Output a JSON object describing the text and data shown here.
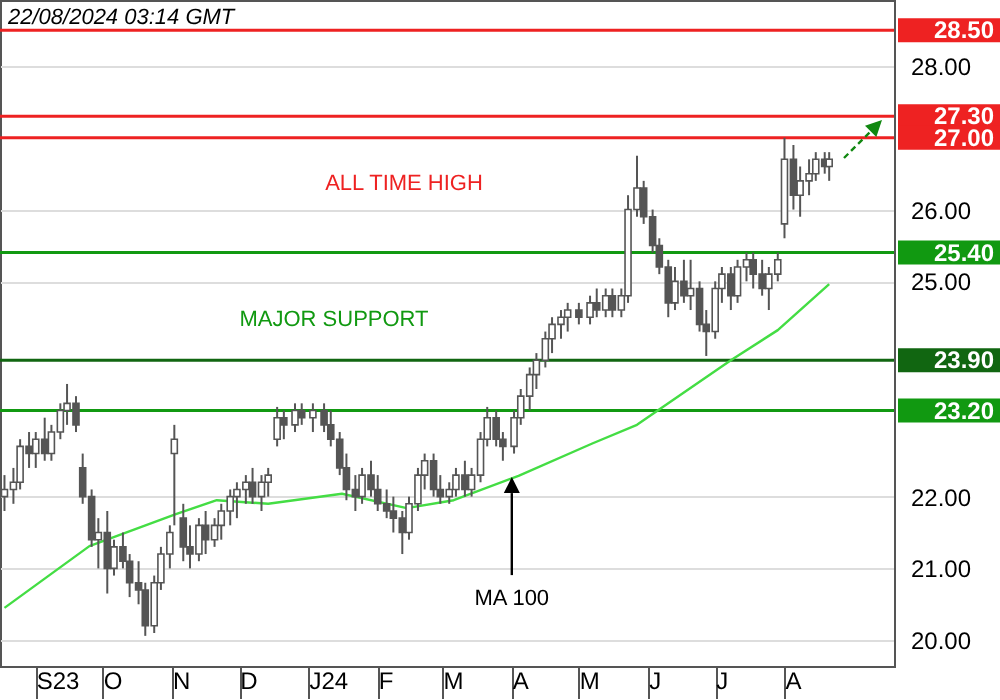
{
  "chart_data": {
    "type": "candlestick",
    "color": "#555555",
    "annotations": [
      "22/08/2024 03:14 GMT",
      "ALL TIME HIGH",
      "MAJOR SUPPORT",
      {
        "text": "MA 100",
        "x": "2024-04-01",
        "y": 22.3
      }
    ],
    "x": [
      "2023-08-18",
      "2023-08-22",
      "2023-08-25",
      "2023-08-29",
      "2023-09-01",
      "2023-09-05",
      "2023-09-08",
      "2023-09-12",
      "2023-09-15",
      "2023-09-19",
      "2023-09-22",
      "2023-09-26",
      "2023-09-29",
      "2023-10-03",
      "2023-10-06",
      "2023-10-10",
      "2023-10-13",
      "2023-10-17",
      "2023-10-20",
      "2023-10-24",
      "2023-10-27",
      "2023-10-31",
      "2023-11-02",
      "2023-11-06",
      "2023-11-09",
      "2023-11-13",
      "2023-11-16",
      "2023-11-20",
      "2023-11-23",
      "2023-11-27",
      "2023-11-30",
      "2023-12-04",
      "2023-12-07",
      "2023-12-11",
      "2023-12-14",
      "2023-12-18",
      "2023-12-21",
      "2023-12-26",
      "2023-12-29",
      "2024-01-03",
      "2024-01-08",
      "2024-01-11",
      "2024-01-15",
      "2024-01-18",
      "2024-01-22",
      "2024-01-25",
      "2024-01-29",
      "2024-02-01",
      "2024-02-05",
      "2024-02-08",
      "2024-02-12",
      "2024-02-15",
      "2024-02-19",
      "2024-02-22",
      "2024-02-26",
      "2024-02-29",
      "2024-03-04",
      "2024-03-07",
      "2024-03-11",
      "2024-03-14",
      "2024-03-18",
      "2024-03-21",
      "2024-03-25",
      "2024-03-28",
      "2024-04-02",
      "2024-04-05",
      "2024-04-09",
      "2024-04-12",
      "2024-04-16",
      "2024-04-19",
      "2024-04-23",
      "2024-04-26",
      "2024-05-01",
      "2024-05-06",
      "2024-05-09",
      "2024-05-13",
      "2024-05-16",
      "2024-05-20",
      "2024-05-23",
      "2024-05-27",
      "2024-05-30",
      "2024-06-03",
      "2024-06-06",
      "2024-06-10",
      "2024-06-13",
      "2024-06-17",
      "2024-06-20",
      "2024-06-24",
      "2024-06-27",
      "2024-07-01",
      "2024-07-04",
      "2024-07-08",
      "2024-07-11",
      "2024-07-15",
      "2024-07-18",
      "2024-07-22",
      "2024-07-25",
      "2024-07-29",
      "2024-08-01",
      "2024-08-05",
      "2024-08-08",
      "2024-08-12",
      "2024-08-15",
      "2024-08-19",
      "2024-08-21"
    ],
    "ohlc": [
      [
        22.0,
        22.3,
        21.8,
        22.1
      ],
      [
        22.1,
        22.4,
        21.9,
        22.2
      ],
      [
        22.2,
        22.8,
        22.1,
        22.7
      ],
      [
        22.7,
        22.9,
        22.4,
        22.6
      ],
      [
        22.6,
        22.9,
        22.4,
        22.8
      ],
      [
        22.8,
        23.1,
        22.5,
        22.6
      ],
      [
        22.6,
        23.0,
        22.5,
        22.9
      ],
      [
        22.9,
        23.3,
        22.8,
        23.2
      ],
      [
        23.2,
        23.57,
        23.0,
        23.3
      ],
      [
        23.3,
        23.4,
        22.9,
        23.0
      ],
      [
        22.4,
        22.6,
        21.9,
        22.0
      ],
      [
        22.0,
        22.1,
        21.3,
        21.4
      ],
      [
        21.4,
        21.7,
        21.0,
        21.5
      ],
      [
        21.5,
        21.8,
        20.65,
        21.0
      ],
      [
        21.0,
        21.4,
        20.9,
        21.3
      ],
      [
        21.3,
        21.5,
        21.0,
        21.1
      ],
      [
        21.1,
        21.2,
        20.6,
        20.8
      ],
      [
        20.8,
        21.1,
        20.5,
        20.7
      ],
      [
        20.7,
        20.8,
        20.06,
        20.2
      ],
      [
        20.2,
        20.9,
        20.1,
        20.8
      ],
      [
        20.8,
        21.3,
        20.7,
        21.2
      ],
      [
        21.2,
        21.6,
        21.0,
        21.5
      ],
      [
        22.6,
        23.0,
        21.6,
        22.8
      ],
      [
        21.7,
        21.9,
        21.1,
        21.3
      ],
      [
        21.3,
        21.6,
        21.0,
        21.2
      ],
      [
        21.2,
        21.7,
        21.1,
        21.6
      ],
      [
        21.6,
        21.8,
        21.2,
        21.4
      ],
      [
        21.4,
        21.7,
        21.3,
        21.6
      ],
      [
        21.6,
        21.9,
        21.4,
        21.8
      ],
      [
        21.8,
        22.1,
        21.6,
        22.0
      ],
      [
        22.0,
        22.2,
        21.7,
        22.1
      ],
      [
        22.1,
        22.3,
        21.9,
        22.2
      ],
      [
        22.2,
        22.4,
        21.9,
        22.0
      ],
      [
        22.0,
        22.3,
        21.8,
        22.2
      ],
      [
        22.2,
        22.4,
        22.0,
        22.3
      ],
      [
        22.8,
        23.25,
        22.7,
        23.1
      ],
      [
        23.1,
        23.2,
        22.8,
        23.0
      ],
      [
        23.0,
        23.3,
        22.9,
        23.2
      ],
      [
        23.2,
        23.3,
        23.0,
        23.1
      ],
      [
        23.1,
        23.3,
        22.9,
        23.2
      ],
      [
        23.2,
        23.3,
        22.9,
        23.0
      ],
      [
        23.0,
        23.2,
        22.7,
        22.8
      ],
      [
        22.8,
        22.9,
        22.3,
        22.4
      ],
      [
        22.4,
        22.6,
        21.95,
        22.1
      ],
      [
        22.1,
        22.3,
        21.8,
        22.0
      ],
      [
        22.0,
        22.4,
        21.9,
        22.3
      ],
      [
        22.3,
        22.5,
        22.0,
        22.1
      ],
      [
        22.1,
        22.3,
        21.8,
        21.9
      ],
      [
        21.9,
        22.1,
        21.7,
        21.8
      ],
      [
        21.8,
        22.0,
        21.5,
        21.7
      ],
      [
        21.7,
        21.8,
        21.2,
        21.5
      ],
      [
        21.5,
        22.0,
        21.4,
        21.9
      ],
      [
        21.9,
        22.4,
        21.8,
        22.3
      ],
      [
        22.3,
        22.6,
        22.1,
        22.5
      ],
      [
        22.5,
        22.6,
        22.0,
        22.1
      ],
      [
        22.1,
        22.3,
        21.9,
        22.0
      ],
      [
        22.0,
        22.2,
        21.9,
        22.1
      ],
      [
        22.1,
        22.4,
        22.0,
        22.3
      ],
      [
        22.3,
        22.5,
        22.0,
        22.1
      ],
      [
        22.1,
        22.4,
        22.0,
        22.3
      ],
      [
        22.3,
        22.9,
        22.2,
        22.8
      ],
      [
        22.8,
        23.25,
        22.7,
        23.1
      ],
      [
        23.1,
        23.2,
        22.7,
        22.8
      ],
      [
        22.8,
        22.9,
        22.5,
        22.7
      ],
      [
        22.7,
        23.2,
        22.6,
        23.1
      ],
      [
        23.1,
        23.5,
        23.0,
        23.4
      ],
      [
        23.4,
        23.8,
        23.2,
        23.7
      ],
      [
        23.7,
        24.0,
        23.5,
        23.9
      ],
      [
        23.9,
        24.3,
        23.8,
        24.2
      ],
      [
        24.2,
        24.5,
        24.0,
        24.4
      ],
      [
        24.4,
        24.6,
        24.2,
        24.5
      ],
      [
        24.5,
        24.7,
        24.3,
        24.6
      ],
      [
        24.6,
        24.7,
        24.4,
        24.5
      ],
      [
        24.5,
        24.8,
        24.4,
        24.7
      ],
      [
        24.7,
        24.9,
        24.5,
        24.6
      ],
      [
        24.6,
        24.9,
        24.5,
        24.8
      ],
      [
        24.8,
        24.9,
        24.5,
        24.6
      ],
      [
        24.6,
        24.9,
        24.5,
        24.8
      ],
      [
        24.8,
        26.2,
        24.7,
        26.0
      ],
      [
        26.0,
        26.75,
        25.9,
        26.3
      ],
      [
        26.3,
        26.4,
        25.8,
        25.9
      ],
      [
        25.9,
        26.0,
        25.4,
        25.5
      ],
      [
        25.5,
        25.6,
        25.1,
        25.2
      ],
      [
        25.2,
        25.3,
        24.5,
        24.7
      ],
      [
        24.7,
        25.2,
        24.6,
        25.0
      ],
      [
        25.0,
        25.3,
        24.7,
        24.8
      ],
      [
        24.8,
        25.3,
        24.6,
        24.9
      ],
      [
        24.9,
        25.0,
        24.3,
        24.4
      ],
      [
        24.4,
        24.6,
        23.96,
        24.3
      ],
      [
        24.3,
        25.0,
        24.2,
        24.9
      ],
      [
        24.9,
        25.2,
        24.7,
        25.1
      ],
      [
        25.1,
        25.2,
        24.6,
        24.8
      ],
      [
        24.8,
        25.3,
        24.7,
        25.2
      ],
      [
        25.2,
        25.4,
        25.0,
        25.3
      ],
      [
        25.3,
        25.4,
        24.9,
        25.1
      ],
      [
        25.1,
        25.3,
        24.8,
        24.9
      ],
      [
        24.9,
        25.2,
        24.6,
        25.1
      ],
      [
        25.1,
        25.4,
        25.0,
        25.3
      ],
      [
        25.8,
        27.0,
        25.6,
        26.7
      ],
      [
        26.7,
        26.9,
        26.0,
        26.2
      ],
      [
        26.2,
        26.6,
        25.9,
        26.4
      ],
      [
        26.4,
        26.7,
        26.2,
        26.5
      ],
      [
        26.5,
        26.8,
        26.4,
        26.7
      ],
      [
        26.7,
        26.8,
        26.5,
        26.6
      ],
      [
        26.6,
        26.8,
        26.4,
        26.7
      ]
    ],
    "series": [
      {
        "type": "line",
        "color": "#44dd44",
        "x": [
          "2023-08-18",
          "2023-09-25",
          "2023-11-03",
          "2023-11-21",
          "2023-12-14",
          "2024-01-16",
          "2024-02-14",
          "2024-03-06",
          "2024-04-04",
          "2024-05-07",
          "2024-05-27",
          "2024-07-08",
          "2024-07-29",
          "2024-08-21"
        ],
        "values": [
          20.45,
          21.31,
          21.76,
          21.95,
          21.9,
          22.04,
          21.84,
          21.95,
          22.29,
          22.74,
          23.0,
          23.9,
          24.32,
          24.96
        ]
      }
    ],
    "xlim": [
      "2023-08-16",
      "2024-09-19"
    ],
    "xticks": [
      {
        "value": "2023-09-01",
        "label": "S23"
      },
      {
        "value": "2023-10-01",
        "label": "O"
      },
      {
        "value": "2023-11-01",
        "label": "N"
      },
      {
        "value": "2023-12-01",
        "label": "D"
      },
      {
        "value": "2024-01-01",
        "label": "J24"
      },
      {
        "value": "2024-02-01",
        "label": "F"
      },
      {
        "value": "2024-03-01",
        "label": "M"
      },
      {
        "value": "2024-04-01",
        "label": "A"
      },
      {
        "value": "2024-05-01",
        "label": "M"
      },
      {
        "value": "2024-06-01",
        "label": "J"
      },
      {
        "value": "2024-07-01",
        "label": "J"
      },
      {
        "value": "2024-08-01",
        "label": "A"
      }
    ],
    "ylim": [
      19.64,
      28.92
    ],
    "yticks": [
      {
        "value": 20,
        "label": "20.00"
      },
      {
        "value": 21,
        "label": "21.00"
      },
      {
        "value": 22,
        "label": "22.00"
      },
      {
        "value": 25,
        "label": "25.00"
      },
      {
        "value": 26,
        "label": "26.00"
      },
      {
        "value": 28,
        "label": "28.00"
      }
    ],
    "grid": "y",
    "ref_lines": [
      {
        "axis": "y",
        "value": 28.5,
        "label": "28.50",
        "color": "#ee2222"
      },
      {
        "axis": "y",
        "value": 27.3,
        "label": "27.30",
        "color": "#ee2222"
      },
      {
        "axis": "y",
        "value": 27.0,
        "label": "27.00",
        "color": "#ee2222"
      },
      {
        "axis": "y",
        "value": 25.4,
        "label": "25.40",
        "color": "#119911"
      },
      {
        "axis": "y",
        "value": 23.9,
        "label": "23.90",
        "color": "#116611"
      },
      {
        "axis": "y",
        "value": 23.2,
        "label": "23.20",
        "color": "#119911"
      }
    ]
  }
}
